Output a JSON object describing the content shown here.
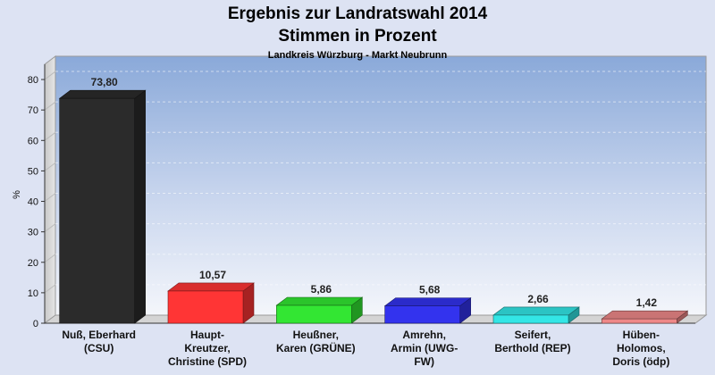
{
  "chart_data": {
    "type": "bar",
    "title": "Ergebnis zur Landratswahl 2014",
    "subtitle": "Stimmen in Prozent",
    "caption": "Landkreis Würzburg - Markt Neubrunn",
    "ylabel": "%",
    "ylim": [
      0,
      85
    ],
    "yticks": [
      "0",
      "10",
      "20",
      "30",
      "40",
      "50",
      "60",
      "70",
      "80"
    ],
    "grid": true,
    "categories": [
      [
        "Nuß, Eberhard",
        "(CSU)"
      ],
      [
        "Haupt-",
        "Kreutzer,",
        "Christine (SPD)"
      ],
      [
        "Heußner,",
        "Karen (GRÜNE)"
      ],
      [
        "Amrehn,",
        "Armin (UWG-",
        "FW)"
      ],
      [
        "Seifert,",
        "Berthold (REP)"
      ],
      [
        "Hüben-",
        "Holomos,",
        "Doris (ödp)"
      ]
    ],
    "values": [
      73.8,
      10.57,
      5.86,
      5.68,
      2.66,
      1.42
    ],
    "value_labels": [
      "73,80",
      "10,57",
      "5,86",
      "5,68",
      "2,66",
      "1,42"
    ],
    "colors": [
      "#2b2b2b",
      "#ff3535",
      "#33e633",
      "#3333ee",
      "#33e6e6",
      "#ee8888"
    ]
  }
}
